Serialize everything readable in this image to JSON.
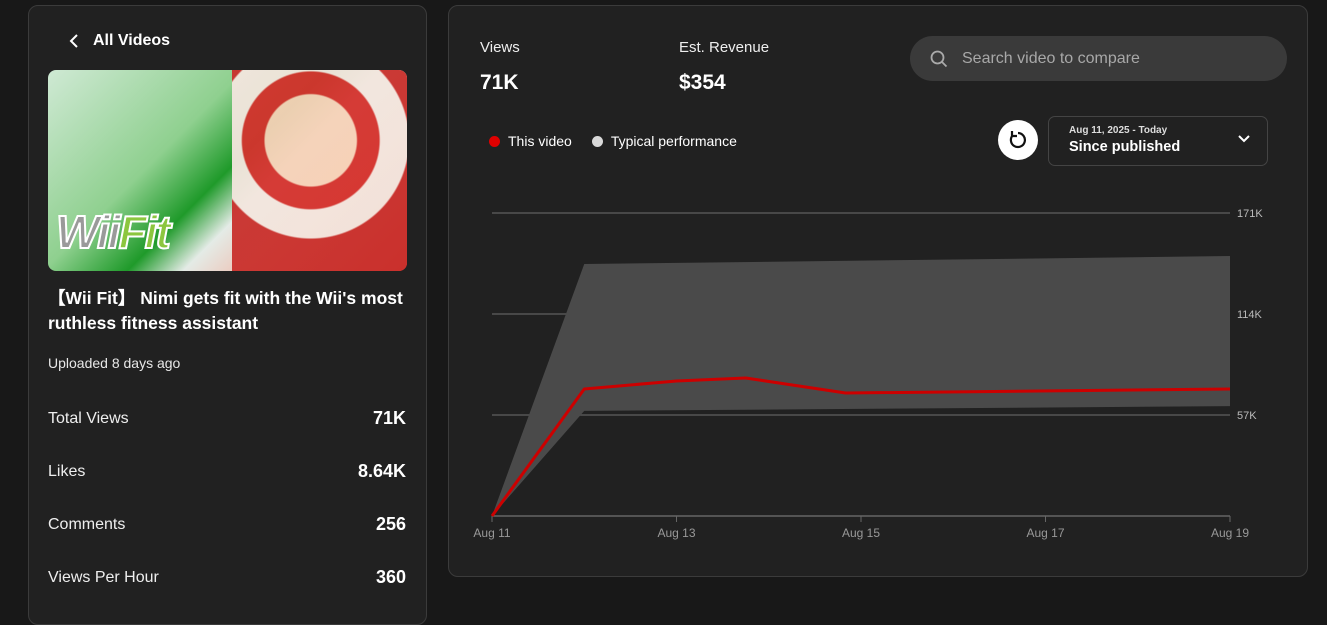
{
  "sidebar": {
    "back_label": "All Videos",
    "thumbnail_logo": {
      "wii": "Wii",
      "fit": "Fit"
    },
    "video_title": "【Wii Fit】 Nimi gets fit with the Wii's most ruthless fitness assistant",
    "uploaded": "Uploaded 8 days ago",
    "stats": [
      {
        "label": "Total Views",
        "value": "71K"
      },
      {
        "label": "Likes",
        "value": "8.64K"
      },
      {
        "label": "Comments",
        "value": "256"
      },
      {
        "label": "Views Per Hour",
        "value": "360"
      }
    ]
  },
  "main": {
    "metrics": [
      {
        "label": "Views",
        "value": "71K"
      },
      {
        "label": "Est. Revenue",
        "value": "$354"
      }
    ],
    "search": {
      "placeholder": "Search video to compare",
      "icon": "search-icon"
    },
    "legend": [
      {
        "label": "This video",
        "color": "#cc0000"
      },
      {
        "label": "Typical performance",
        "color": "#d9d9d9"
      }
    ],
    "date_range": {
      "range": "Aug 11, 2025 - Today",
      "label": "Since published"
    }
  },
  "chart_data": {
    "type": "line",
    "x_ticks": [
      "Aug 11",
      "Aug 13",
      "Aug 15",
      "Aug 17",
      "Aug 19"
    ],
    "y_ticks": [
      "57K",
      "114K",
      "171K"
    ],
    "ylim": [
      0,
      171000
    ],
    "xlim": [
      "Aug 11",
      "Aug 19"
    ],
    "grid": true,
    "series": [
      {
        "name": "This video",
        "color": "#cc0000",
        "points": [
          [
            "Aug 11",
            0
          ],
          [
            "Aug 12",
            71700
          ],
          [
            "Aug 13",
            76200
          ],
          [
            "Aug 13 18:00",
            77900
          ],
          [
            "Aug 14 20:00",
            69400
          ],
          [
            "Aug 19",
            71700
          ]
        ]
      }
    ],
    "band": {
      "name": "Typical performance",
      "color": "#4a4a4a",
      "upper": [
        [
          "Aug 11",
          0
        ],
        [
          "Aug 12",
          142200
        ],
        [
          "Aug 19",
          146700
        ]
      ],
      "lower": [
        [
          "Aug 11",
          0
        ],
        [
          "Aug 12",
          59300
        ],
        [
          "Aug 19",
          62000
        ]
      ]
    }
  }
}
